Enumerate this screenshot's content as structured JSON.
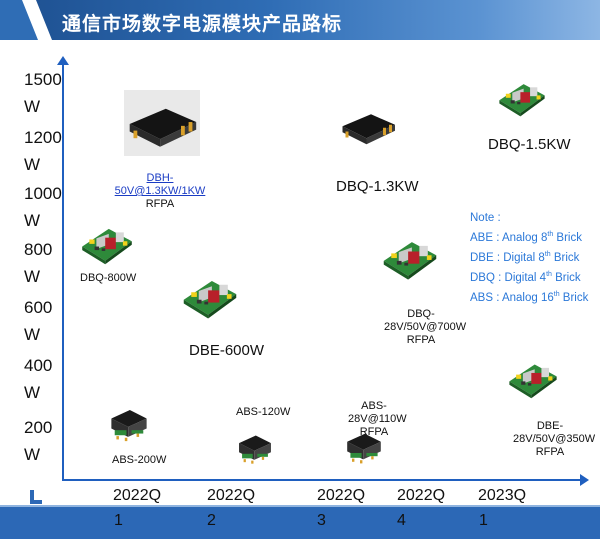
{
  "header": {
    "title": "通信市场数字电源模块产品路标"
  },
  "y_axis": {
    "ticks": [
      "1500\nW",
      "1200\nW",
      "1000\nW",
      "800\nW",
      "600\nW",
      "400\nW",
      "200\nW"
    ]
  },
  "x_axis": {
    "periods": [
      {
        "label": "2022Q",
        "number": "1"
      },
      {
        "label": "2022Q",
        "number": "2"
      },
      {
        "label": "2022Q",
        "number": "3"
      },
      {
        "label": "2022Q",
        "number": "4"
      },
      {
        "label": "2023Q",
        "number": "1"
      }
    ]
  },
  "products": {
    "dbh": {
      "name_line1": "DBH-",
      "name_line2": "50V@1.3KW/1KW",
      "line3": "RFPA",
      "icon": "potted-brick-module-icon"
    },
    "dbq_800": {
      "name": "DBQ-800W",
      "icon": "open-frame-module-icon"
    },
    "dbe_600": {
      "name": "DBE-600W",
      "icon": "open-frame-module-icon"
    },
    "abs_200": {
      "name": "ABS-200W",
      "icon": "small-brick-module-icon"
    },
    "abs_120": {
      "name": "ABS-120W",
      "icon": "small-brick-module-icon"
    },
    "abs_110": {
      "name_line1": "ABS-",
      "name_line2": "28V@110W",
      "line3": "RFPA",
      "icon": "small-brick-module-icon"
    },
    "dbq_1_3": {
      "name": "DBQ-1.3KW",
      "icon": "potted-brick-module-icon"
    },
    "dbq_700": {
      "name_line1": "DBQ-",
      "name_line2": "28V/50V@700W",
      "line3": "RFPA",
      "icon": "open-frame-module-icon"
    },
    "dbq_1_5": {
      "name": "DBQ-1.5KW",
      "icon": "open-frame-module-icon"
    },
    "dbe_350": {
      "name_line1": "DBE-",
      "name_line2": "28V/50V@350W",
      "line3": "RFPA",
      "icon": "open-frame-module-icon"
    }
  },
  "note": {
    "title": "Note :",
    "items": [
      {
        "code": "ABE",
        "desc": "Analog 8",
        "sup": "th",
        "suffix": " Brick"
      },
      {
        "code": "DBE",
        "desc": "Digital 8",
        "sup": "th",
        "suffix": " Brick"
      },
      {
        "code": "DBQ",
        "desc": "Digital 4",
        "sup": "th",
        "suffix": " Brick"
      },
      {
        "code": "ABS",
        "desc": " Analog 16",
        "sup": "th",
        "suffix": " Brick"
      }
    ]
  },
  "colors": {
    "header": "#2f6db5",
    "axis": "#1f5fbf",
    "footer": "#2c68b6",
    "note": "#2b78d8",
    "link": "#1a3cc4"
  }
}
